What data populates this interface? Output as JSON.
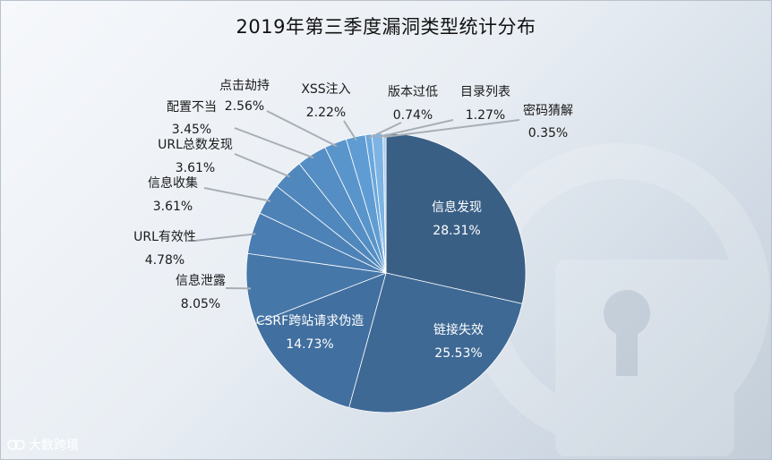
{
  "brand": {
    "name": "大数跨境"
  },
  "chart_data": {
    "type": "pie",
    "title": "2019年第三季度漏洞类型统计分布",
    "labels": [
      "信息发现",
      "链接失效",
      "CSRF跨站请求伪造",
      "信息泄露",
      "URL有效性",
      "信息收集",
      "URL总数发现",
      "配置不当",
      "点击劫持",
      "XSS注入",
      "版本过低",
      "目录列表",
      "密码猜解"
    ],
    "values": [
      28.31,
      25.53,
      14.73,
      8.05,
      4.78,
      3.61,
      3.61,
      3.45,
      2.56,
      2.22,
      0.74,
      1.27,
      0.35
    ],
    "value_labels": [
      "28.31%",
      "25.53%",
      "14.73%",
      "8.05%",
      "4.78%",
      "3.61%",
      "3.61%",
      "3.45%",
      "2.56%",
      "2.22%",
      "0.74%",
      "1.27%",
      "0.35%"
    ],
    "colors": [
      "#3a5f85",
      "#3e6994",
      "#416f9f",
      "#4677a9",
      "#4a7db1",
      "#4d82b6",
      "#5088bd",
      "#548ec4",
      "#5995cb",
      "#5f9cd3",
      "#6aa7dc",
      "#7db4e4",
      "#a9cdec"
    ],
    "legend": "none"
  }
}
